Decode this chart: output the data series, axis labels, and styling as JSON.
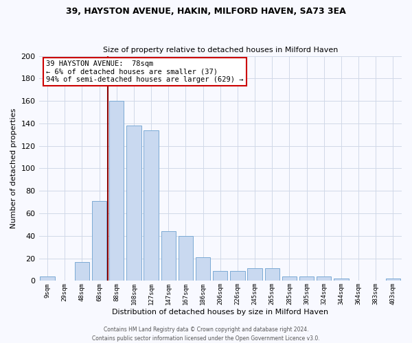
{
  "title": "39, HAYSTON AVENUE, HAKIN, MILFORD HAVEN, SA73 3EA",
  "subtitle": "Size of property relative to detached houses in Milford Haven",
  "xlabel": "Distribution of detached houses by size in Milford Haven",
  "ylabel": "Number of detached properties",
  "bar_labels": [
    "9sqm",
    "29sqm",
    "48sqm",
    "68sqm",
    "88sqm",
    "108sqm",
    "127sqm",
    "147sqm",
    "167sqm",
    "186sqm",
    "206sqm",
    "226sqm",
    "245sqm",
    "265sqm",
    "285sqm",
    "305sqm",
    "324sqm",
    "344sqm",
    "364sqm",
    "383sqm",
    "403sqm"
  ],
  "bar_values": [
    4,
    0,
    17,
    71,
    160,
    138,
    134,
    44,
    40,
    21,
    9,
    9,
    11,
    11,
    4,
    4,
    4,
    2,
    0,
    0,
    2
  ],
  "bar_color": "#c9d9f0",
  "bar_edge_color": "#7baad4",
  "background_color": "#f8f9ff",
  "grid_color": "#d0d8e8",
  "ylim": [
    0,
    200
  ],
  "yticks": [
    0,
    20,
    40,
    60,
    80,
    100,
    120,
    140,
    160,
    180,
    200
  ],
  "property_label": "39 HAYSTON AVENUE:  78sqm",
  "annotation_line1": "← 6% of detached houses are smaller (37)",
  "annotation_line2": "94% of semi-detached houses are larger (629) →",
  "vline_color": "#8b0000",
  "annotation_box_color": "#ffffff",
  "annotation_box_edge": "#cc0000",
  "footer1": "Contains HM Land Registry data © Crown copyright and database right 2024.",
  "footer2": "Contains public sector information licensed under the Open Government Licence v3.0."
}
